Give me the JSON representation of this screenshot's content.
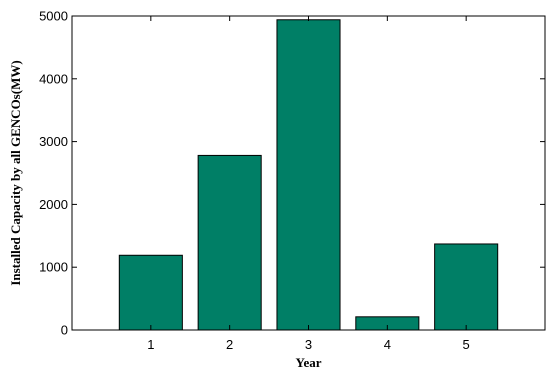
{
  "chart_data": {
    "type": "bar",
    "categories": [
      "1",
      "2",
      "3",
      "4",
      "5"
    ],
    "values": [
      1190,
      2780,
      4940,
      210,
      1370
    ],
    "title": "",
    "xlabel": "Year",
    "ylabel": "Installed Capacity by all GENCOs(MW)",
    "xlim": [
      0,
      6
    ],
    "ylim": [
      0,
      5000
    ],
    "yticks": [
      0,
      1000,
      2000,
      3000,
      4000,
      5000
    ],
    "ytick_labels": [
      "0",
      "1000",
      "2000",
      "3000",
      "4000",
      "5000"
    ],
    "grid": false,
    "legend": "none",
    "bar_color": "#007f66",
    "bar_edge_color": "#000000"
  }
}
